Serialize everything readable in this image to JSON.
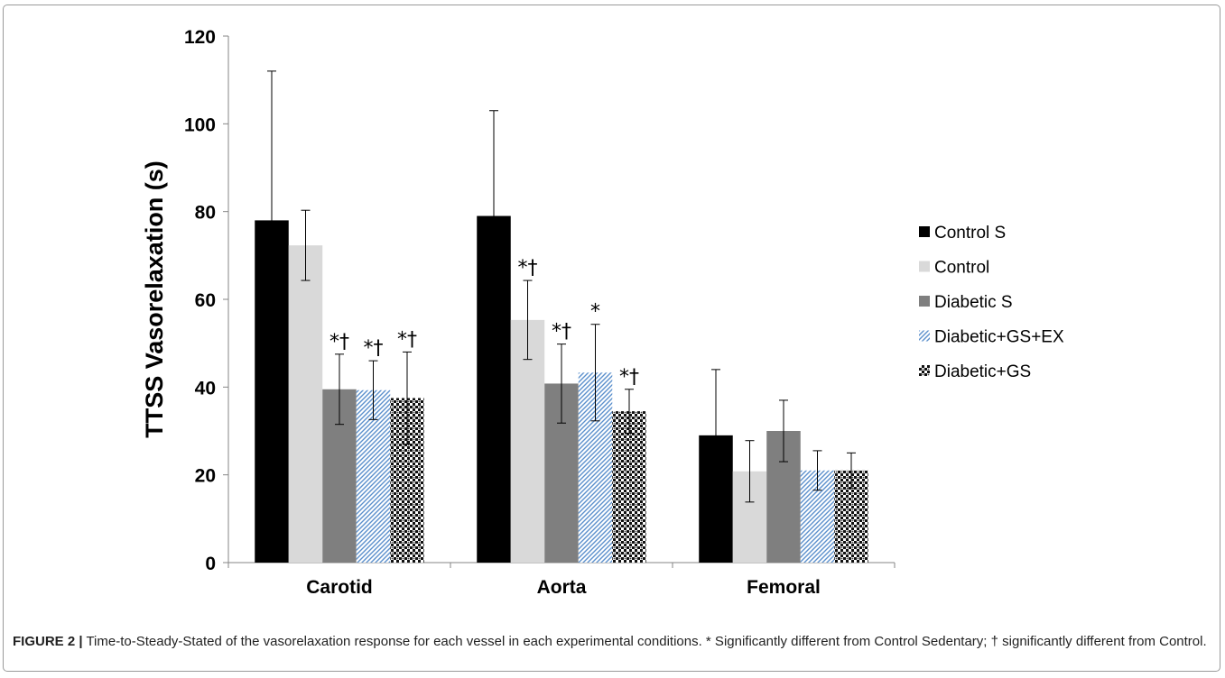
{
  "chart_data": {
    "type": "bar",
    "title": "",
    "xlabel": "",
    "ylabel": "TTSS Vasorelaxation (s)",
    "ylim": [
      0,
      120
    ],
    "yticks": [
      0,
      20,
      40,
      60,
      80,
      100,
      120
    ],
    "grid": false,
    "legend_position": "right",
    "categories": [
      "Carotid",
      "Aorta",
      "Femoral"
    ],
    "series": [
      {
        "name": "Control S",
        "color": "#000000",
        "pattern": "solid",
        "values": [
          78,
          79,
          29
        ],
        "errors": [
          34,
          24,
          15
        ],
        "annotations": [
          "",
          "",
          ""
        ]
      },
      {
        "name": "Control",
        "color": "#d9d9d9",
        "pattern": "solid",
        "values": [
          72.3,
          55.3,
          20.8
        ],
        "errors": [
          8,
          9,
          7
        ],
        "annotations": [
          "",
          "*†",
          ""
        ]
      },
      {
        "name": "Diabetic S",
        "color": "#7f7f7f",
        "pattern": "solid",
        "values": [
          39.5,
          40.8,
          30
        ],
        "errors": [
          8,
          9,
          7
        ],
        "annotations": [
          "*†",
          "*†",
          ""
        ]
      },
      {
        "name": "Diabetic+GS+EX",
        "color": "#6fa8dc",
        "pattern": "diagonal",
        "values": [
          39.3,
          43.3,
          21
        ],
        "errors": [
          6.7,
          11,
          4.5
        ],
        "annotations": [
          "*†",
          "*",
          ""
        ]
      },
      {
        "name": "Diabetic+GS",
        "color": "#000000",
        "pattern": "checker",
        "values": [
          37.5,
          34.5,
          21
        ],
        "errors": [
          10.5,
          5,
          4
        ],
        "annotations": [
          "*†",
          "*†",
          ""
        ]
      }
    ]
  },
  "caption": {
    "label": "FIGURE 2 |",
    "text": "Time-to-Steady-Stated of the vasorelaxation response for each vessel in each experimental conditions. * Significantly different from Control Sedentary; † significantly different from Control."
  }
}
